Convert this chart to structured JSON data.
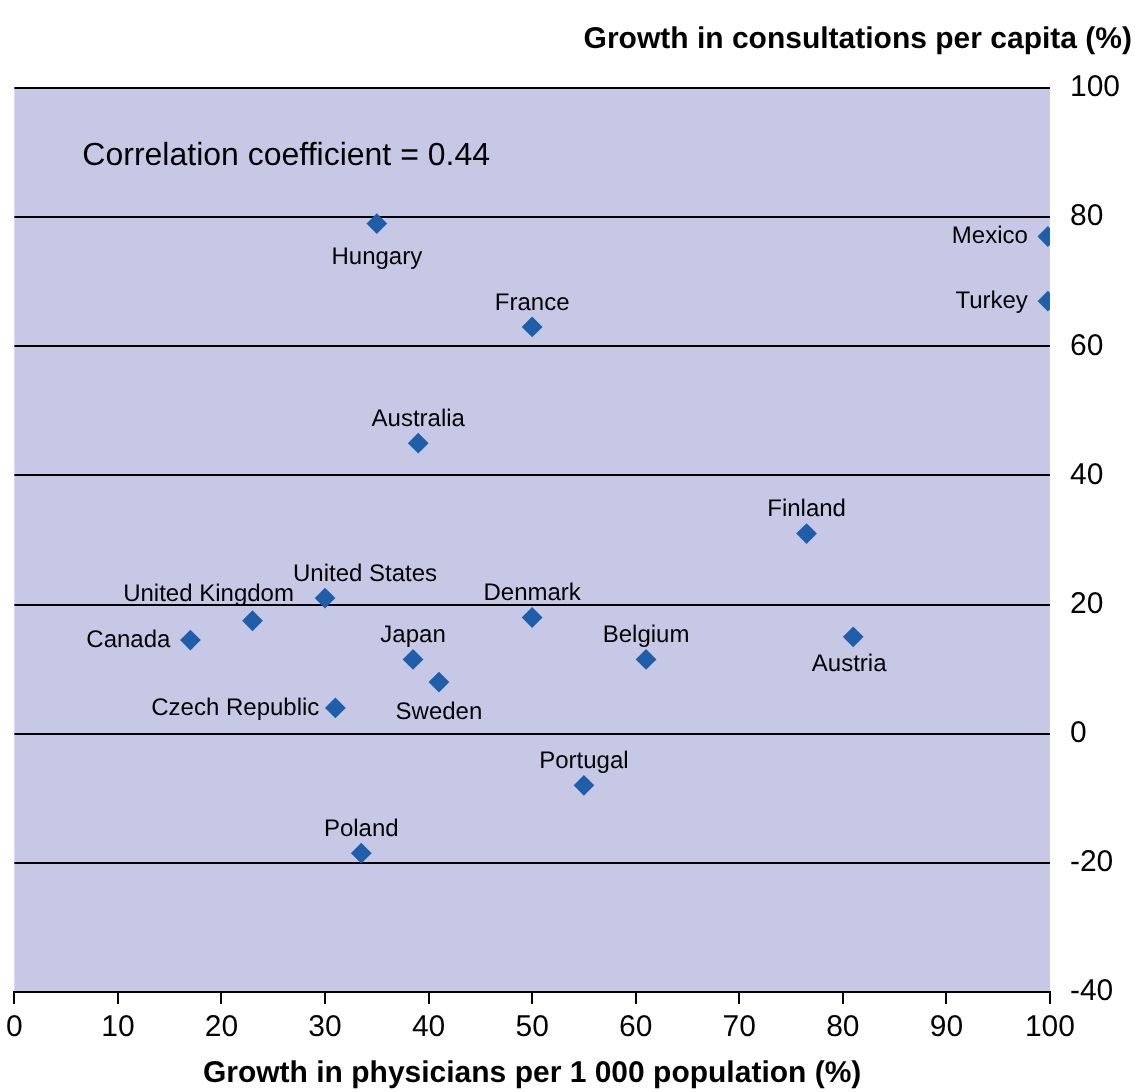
{
  "chart_data": {
    "type": "scatter",
    "xlabel": "Growth in physicians per 1 000 population (%)",
    "ylabel": "Growth in consultations per capita (%)",
    "annotations": [
      "Correlation coefficient = 0.44"
    ],
    "series": [
      {
        "name": "Hungary",
        "color": "#1f5ea8",
        "x": [
          35
        ],
        "values": [
          79
        ]
      },
      {
        "name": "France",
        "color": "#1f5ea8",
        "x": [
          50
        ],
        "values": [
          63
        ]
      },
      {
        "name": "Mexico",
        "color": "#1f5ea8",
        "x": [
          99.8
        ],
        "values": [
          77
        ]
      },
      {
        "name": "Turkey",
        "color": "#1f5ea8",
        "x": [
          99.8
        ],
        "values": [
          67
        ]
      },
      {
        "name": "Australia",
        "color": "#1f5ea8",
        "x": [
          39
        ],
        "values": [
          45
        ]
      },
      {
        "name": "Finland",
        "color": "#1f5ea8",
        "x": [
          76.5
        ],
        "values": [
          31
        ]
      },
      {
        "name": "United States",
        "color": "#1f5ea8",
        "x": [
          30
        ],
        "values": [
          21
        ]
      },
      {
        "name": "United Kingdom",
        "color": "#1f5ea8",
        "x": [
          23
        ],
        "values": [
          17.5
        ]
      },
      {
        "name": "Canada",
        "color": "#1f5ea8",
        "x": [
          17
        ],
        "values": [
          14.5
        ]
      },
      {
        "name": "Denmark",
        "color": "#1f5ea8",
        "x": [
          50
        ],
        "values": [
          18
        ]
      },
      {
        "name": "Japan",
        "color": "#1f5ea8",
        "x": [
          38.5
        ],
        "values": [
          11.5
        ]
      },
      {
        "name": "Sweden",
        "color": "#1f5ea8",
        "x": [
          41
        ],
        "values": [
          8
        ]
      },
      {
        "name": "Belgium",
        "color": "#1f5ea8",
        "x": [
          61
        ],
        "values": [
          11.5
        ]
      },
      {
        "name": "Austria",
        "color": "#1f5ea8",
        "x": [
          81
        ],
        "values": [
          15
        ]
      },
      {
        "name": "Czech Republic",
        "color": "#1f5ea8",
        "x": [
          31
        ],
        "values": [
          4
        ]
      },
      {
        "name": "Portugal",
        "color": "#1f5ea8",
        "x": [
          55
        ],
        "values": [
          -8
        ]
      },
      {
        "name": "Poland",
        "color": "#1f5ea8",
        "x": [
          33.5
        ],
        "values": [
          -18.5
        ]
      }
    ],
    "xlim": [
      0,
      100
    ],
    "xticks": [
      0,
      10,
      20,
      30,
      40,
      50,
      60,
      70,
      80,
      90,
      100
    ],
    "ylim": [
      -40,
      100
    ],
    "yticks": [
      -40,
      -20,
      0,
      20,
      40,
      60,
      80,
      100
    ],
    "grid": "y",
    "marker": "diamond",
    "legend": false
  }
}
